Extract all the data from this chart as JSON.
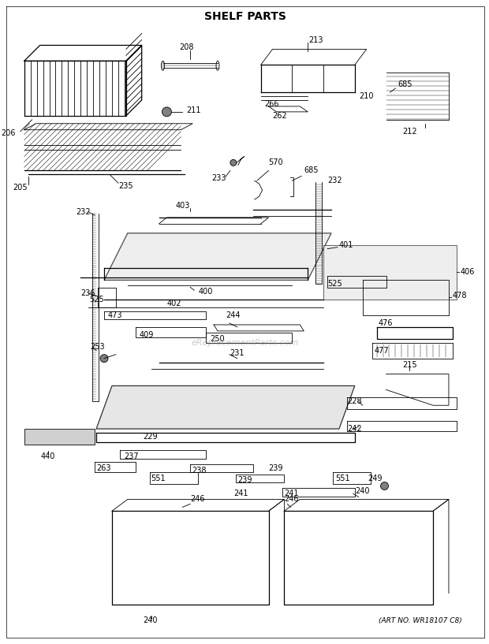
{
  "title": "SHELF PARTS",
  "subtitle": "(ART NO. WR18107 C8)",
  "bg_color": "#ffffff",
  "line_color": "#000000",
  "title_fontsize": 10,
  "label_fontsize": 7,
  "fig_width": 6.2,
  "fig_height": 8.17,
  "watermark": "eReplacementParts.com"
}
